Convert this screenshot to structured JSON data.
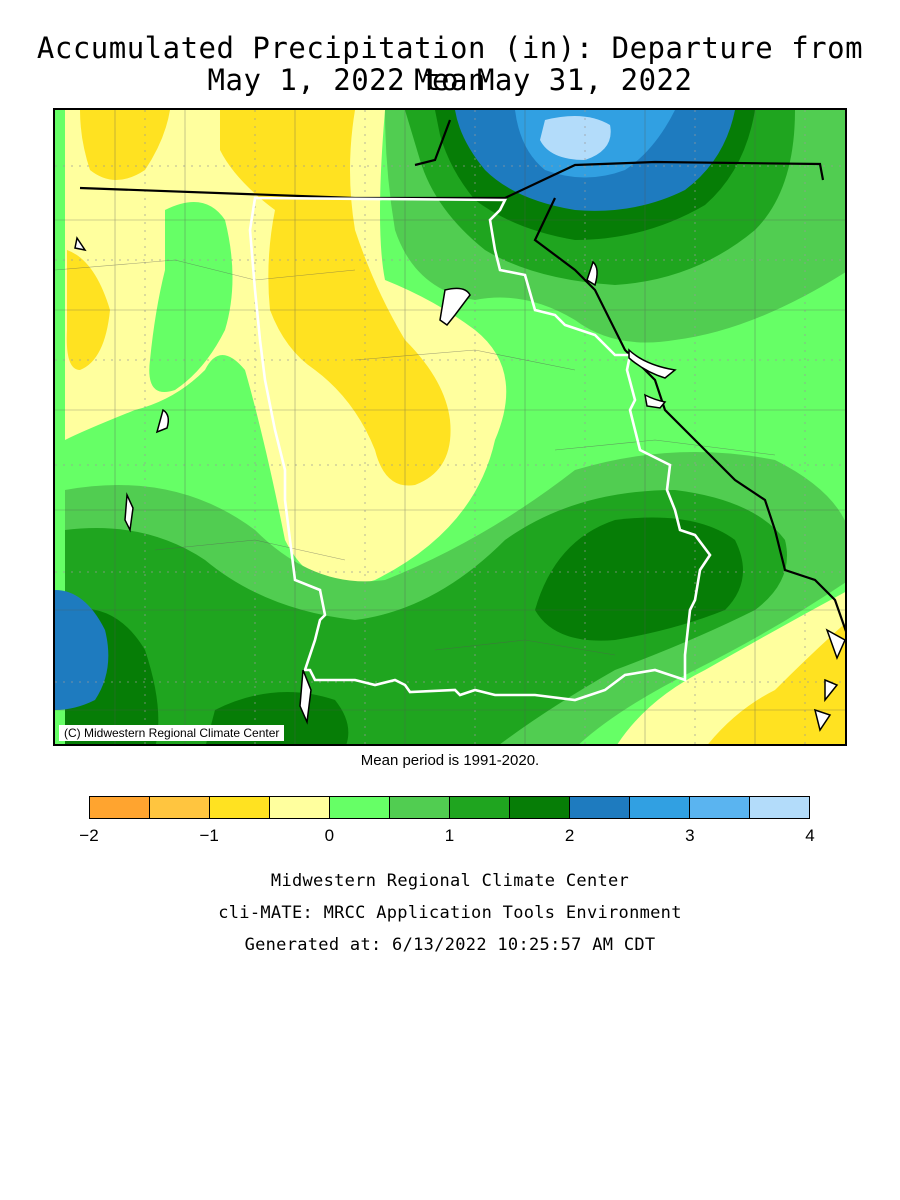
{
  "title": {
    "line1": "Accumulated Precipitation (in): Departure from Mean",
    "line2": "May 1, 2022 to May 31, 2022"
  },
  "map": {
    "credit": "(C) Midwestern Regional Climate Center"
  },
  "mean_period": "Mean period is 1991-2020.",
  "legend": {
    "bins": [
      {
        "min": -2.0,
        "max": -1.5,
        "color": "#FFA42F"
      },
      {
        "min": -1.5,
        "max": -1.0,
        "color": "#FFC53F"
      },
      {
        "min": -1.0,
        "max": -0.5,
        "color": "#FFE221"
      },
      {
        "min": -0.5,
        "max": 0.0,
        "color": "#FFFF9E"
      },
      {
        "min": 0.0,
        "max": 0.5,
        "color": "#66FF66"
      },
      {
        "min": 0.5,
        "max": 1.0,
        "color": "#51CD51"
      },
      {
        "min": 1.0,
        "max": 1.5,
        "color": "#1FA51F"
      },
      {
        "min": 1.5,
        "max": 2.0,
        "color": "#067D06"
      },
      {
        "min": 2.0,
        "max": 2.5,
        "color": "#1E7BBF"
      },
      {
        "min": 2.5,
        "max": 3.0,
        "color": "#31A0E2"
      },
      {
        "min": 3.0,
        "max": 3.5,
        "color": "#5AB4F0"
      },
      {
        "min": 3.5,
        "max": 4.0,
        "color": "#B3DCFA"
      }
    ],
    "tick_labels": [
      "-2",
      "-1",
      "0",
      "1",
      "2",
      "3",
      "4"
    ]
  },
  "footer": {
    "line1": "Midwestern Regional Climate Center",
    "line2": "cli-MATE: MRCC Application Tools Environment",
    "line3": "Generated at: 6/13/2022 10:25:57 AM CDT"
  }
}
